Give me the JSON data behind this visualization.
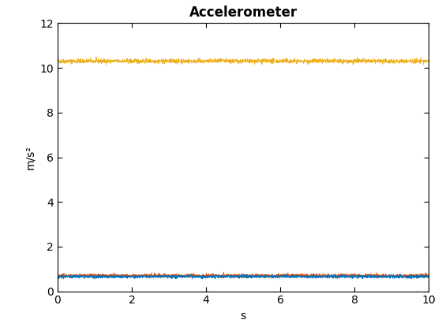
{
  "title": "Accelerometer",
  "xlabel": "s",
  "ylabel": "m/s²",
  "xlim": [
    0,
    10
  ],
  "ylim": [
    0,
    12
  ],
  "xticks": [
    0,
    2,
    4,
    6,
    8,
    10
  ],
  "yticks": [
    0,
    2,
    4,
    6,
    8,
    10,
    12
  ],
  "n_points": 2000,
  "line1_mean": 10.3,
  "line1_noise": 0.05,
  "line1_color": "#EDB120",
  "line2_mean": 0.7,
  "line2_noise": 0.04,
  "line2_color": "#D95319",
  "line3_mean": 0.66,
  "line3_noise": 0.035,
  "line3_color": "#0072BD",
  "linewidth": 0.6,
  "background_color": "#ffffff",
  "title_fontsize": 12,
  "label_fontsize": 10,
  "tick_fontsize": 10
}
